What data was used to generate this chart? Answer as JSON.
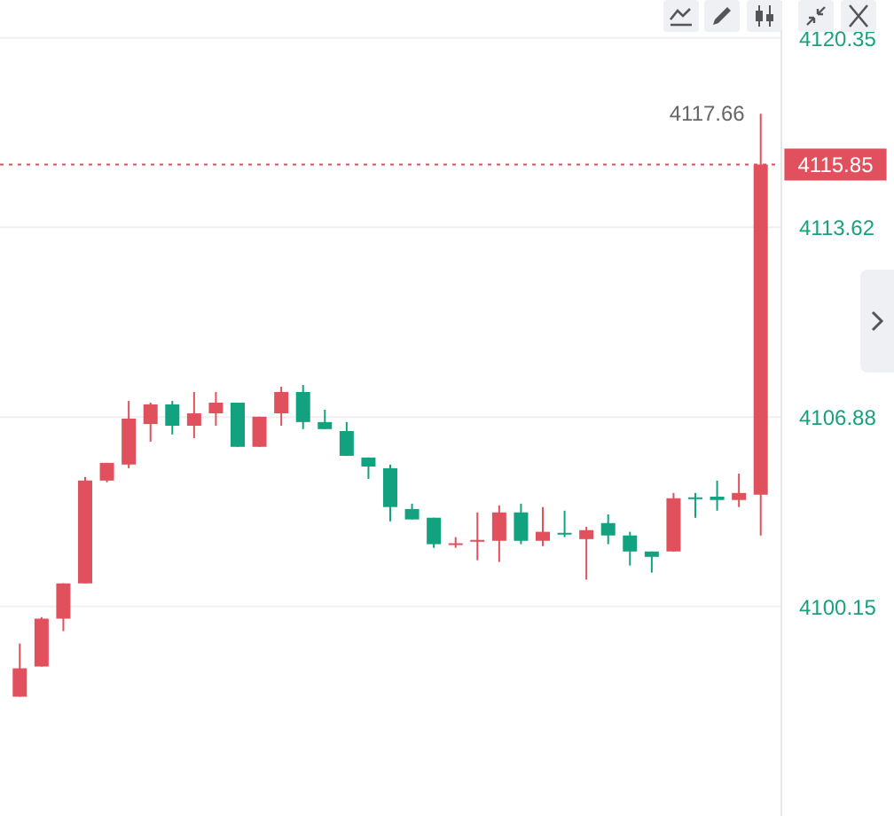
{
  "chart_data": {
    "type": "candlestick",
    "categories": [
      null,
      null,
      null,
      null,
      null,
      null,
      null,
      null,
      null,
      null,
      null,
      null,
      null,
      null,
      null,
      null,
      null,
      null,
      null,
      null,
      null,
      null,
      null,
      null,
      null,
      null,
      null,
      null,
      null,
      null,
      null,
      null,
      null,
      null,
      null
    ],
    "ohlc": [
      [
        4096.94,
        4098.83,
        4096.94,
        4097.95
      ],
      [
        4098.01,
        4099.77,
        4098.01,
        4099.71
      ],
      [
        4099.71,
        4100.97,
        4099.27,
        4100.97
      ],
      [
        4100.97,
        4104.75,
        4100.97,
        4104.62
      ],
      [
        4104.62,
        4105.25,
        4104.56,
        4105.25
      ],
      [
        4105.19,
        4107.45,
        4105.06,
        4106.82
      ],
      [
        4106.63,
        4107.39,
        4106.0,
        4107.33
      ],
      [
        4107.33,
        4107.45,
        4106.26,
        4106.57
      ],
      [
        4106.57,
        4107.77,
        4106.13,
        4107.01
      ],
      [
        4107.01,
        4107.77,
        4106.57,
        4107.39
      ],
      [
        4107.39,
        4107.39,
        4105.82,
        4105.82
      ],
      [
        4105.82,
        4106.89,
        4105.82,
        4106.89
      ],
      [
        4107.01,
        4107.96,
        4106.57,
        4107.77
      ],
      [
        4107.77,
        4108.02,
        4106.45,
        4106.7
      ],
      [
        4106.7,
        4107.14,
        4106.45,
        4106.45
      ],
      [
        4106.38,
        4106.7,
        4105.5,
        4105.5
      ],
      [
        4105.44,
        4105.44,
        4104.68,
        4105.12
      ],
      [
        4105.06,
        4105.19,
        4103.17,
        4103.68
      ],
      [
        4103.61,
        4103.8,
        4103.24,
        4103.24
      ],
      [
        4103.3,
        4103.3,
        4102.23,
        4102.36
      ],
      [
        4102.36,
        4102.61,
        4102.23,
        4102.36
      ],
      [
        4102.48,
        4103.49,
        4101.79,
        4102.48
      ],
      [
        4102.48,
        4103.74,
        4101.73,
        4103.49
      ],
      [
        4103.49,
        4103.8,
        4102.36,
        4102.48
      ],
      [
        4102.48,
        4103.68,
        4102.29,
        4102.8
      ],
      [
        4102.73,
        4103.55,
        4102.61,
        4102.73
      ],
      [
        4102.54,
        4102.98,
        4101.1,
        4102.86
      ],
      [
        4103.11,
        4103.42,
        4102.36,
        4102.67
      ],
      [
        4102.67,
        4102.8,
        4101.6,
        4102.1
      ],
      [
        4102.1,
        4102.1,
        4101.35,
        4101.91
      ],
      [
        4102.1,
        4104.18,
        4102.1,
        4103.99
      ],
      [
        4103.99,
        4104.18,
        4103.3,
        4103.99
      ],
      [
        4104.05,
        4104.62,
        4103.55,
        4103.93
      ],
      [
        4103.93,
        4104.87,
        4103.68,
        4104.18
      ],
      [
        4104.12,
        4117.66,
        4102.67,
        4115.85
      ]
    ],
    "colors": [
      "#e0515d",
      "#e0515d",
      "#e0515d",
      "#e0515d",
      "#e0515d",
      "#e0515d",
      "#e0515d",
      "#12a27f",
      "#e0515d",
      "#e0515d",
      "#12a27f",
      "#e0515d",
      "#e0515d",
      "#12a27f",
      "#12a27f",
      "#12a27f",
      "#12a27f",
      "#12a27f",
      "#12a27f",
      "#12a27f",
      "#e0515d",
      "#e0515d",
      "#e0515d",
      "#12a27f",
      "#e0515d",
      "#12a27f",
      "#e0515d",
      "#12a27f",
      "#12a27f",
      "#12a27f",
      "#e0515d",
      "#12a27f",
      "#12a27f",
      "#e0515d",
      "#e0515d"
    ],
    "ylim": [
      4092.7,
      4121.7
    ],
    "yticks": [
      4100.15,
      4106.88,
      4113.62,
      4120.35
    ],
    "grid": "y",
    "ref_lines": [
      {
        "axis": "y",
        "value": 4115.85,
        "label": "4115.85",
        "color": "#e0515d",
        "line_style": "dotted"
      }
    ],
    "annotations": [
      "4117.66"
    ]
  }
}
